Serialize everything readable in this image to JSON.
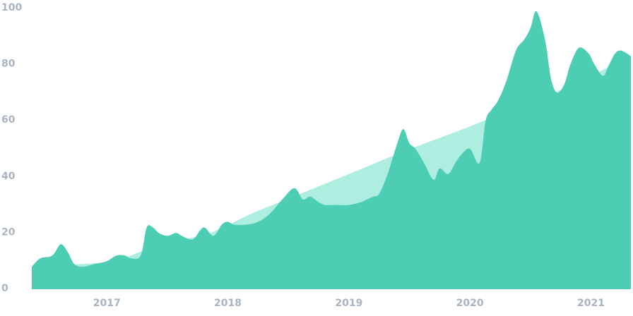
{
  "colors": {
    "background": "#ffffff",
    "tick_text": "#a9b4c2",
    "area_main": "#4ecdb5",
    "area_trend": "#aeeee0"
  },
  "chart_data": {
    "type": "area",
    "title": "",
    "xlabel": "",
    "ylabel": "",
    "xlim": [
      2016.38,
      2021.33
    ],
    "ylim": [
      0,
      100
    ],
    "grid": false,
    "legend": "none",
    "x_ticks": [
      "2017",
      "2018",
      "2019",
      "2020",
      "2021"
    ],
    "x_tick_values": [
      2017,
      2018,
      2019,
      2020,
      2021
    ],
    "y_ticks": [
      "0",
      "20",
      "40",
      "60",
      "80",
      "100"
    ],
    "y_tick_values": [
      0,
      20,
      40,
      60,
      80,
      100
    ],
    "series": [
      {
        "kind": "trend",
        "x": [
          2016.38,
          2016.8,
          2017.08,
          2017.2,
          2017.45,
          2017.85,
          2018.2,
          2018.6,
          2019.0,
          2019.45,
          2020.0,
          2020.4,
          2020.75,
          2021.0,
          2021.33
        ],
        "y": [
          8,
          9,
          10,
          12,
          16,
          20,
          27,
          34,
          41,
          49,
          58,
          65,
          71,
          76,
          83
        ]
      },
      {
        "kind": "main",
        "x": [
          2016.38,
          2016.45,
          2016.55,
          2016.62,
          2016.68,
          2016.73,
          2016.8,
          2016.9,
          2017.0,
          2017.08,
          2017.15,
          2017.2,
          2017.28,
          2017.33,
          2017.38,
          2017.43,
          2017.5,
          2017.57,
          2017.62,
          2017.67,
          2017.72,
          2017.8,
          2017.88,
          2017.95,
          2018.0,
          2018.05,
          2018.15,
          2018.25,
          2018.35,
          2018.45,
          2018.55,
          2018.62,
          2018.68,
          2018.75,
          2018.8,
          2018.85,
          2018.9,
          2019.0,
          2019.1,
          2019.15,
          2019.2,
          2019.25,
          2019.32,
          2019.4,
          2019.45,
          2019.5,
          2019.55,
          2019.62,
          2019.7,
          2019.75,
          2019.82,
          2019.88,
          2019.93,
          2020.0,
          2020.08,
          2020.13,
          2020.18,
          2020.23,
          2020.3,
          2020.38,
          2020.45,
          2020.5,
          2020.55,
          2020.62,
          2020.67,
          2020.72,
          2020.78,
          2020.83,
          2020.9,
          2020.98,
          2021.03,
          2021.1,
          2021.15,
          2021.2,
          2021.25,
          2021.33
        ],
        "y": [
          8,
          11,
          12,
          16,
          13,
          9,
          8,
          9,
          10,
          12,
          12,
          11,
          12,
          22,
          22,
          20,
          19,
          20,
          19,
          18,
          18,
          22,
          19,
          23,
          24,
          23,
          23,
          24,
          27,
          32,
          36,
          32,
          33,
          31,
          30,
          30,
          30,
          30,
          31,
          32,
          33,
          34,
          41,
          52,
          57,
          52,
          50,
          45,
          39,
          43,
          41,
          45,
          48,
          50,
          45,
          60,
          64,
          67,
          74,
          85,
          89,
          93,
          99,
          89,
          75,
          70,
          73,
          80,
          86,
          84,
          80,
          76,
          80,
          84,
          85,
          83
        ]
      }
    ]
  }
}
